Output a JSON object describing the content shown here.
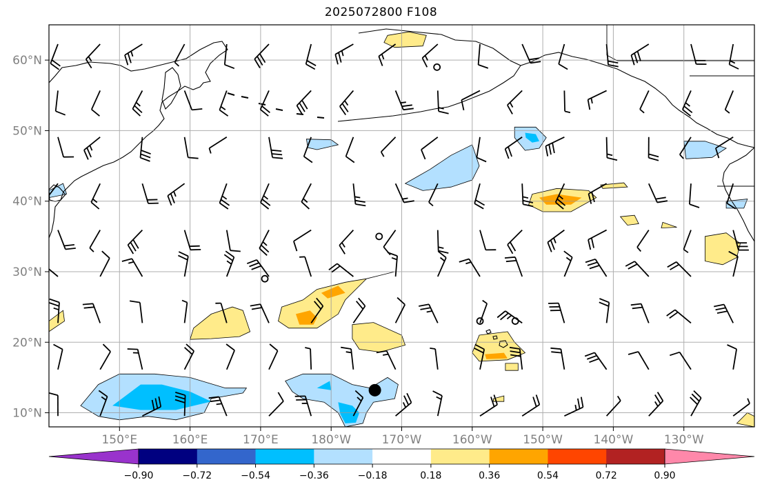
{
  "title": "2025072800 F108",
  "map": {
    "lon_range": [
      140,
      240
    ],
    "lat_range": [
      8,
      65
    ],
    "lat_ticks": [
      {
        "value": 10,
        "label": "10°N"
      },
      {
        "value": 20,
        "label": "20°N"
      },
      {
        "value": 30,
        "label": "30°N"
      },
      {
        "value": 40,
        "label": "40°N"
      },
      {
        "value": 50,
        "label": "50°N"
      },
      {
        "value": 60,
        "label": "60°N"
      }
    ],
    "lon_ticks": [
      {
        "value": 150,
        "label": "150°E"
      },
      {
        "value": 160,
        "label": "160°E"
      },
      {
        "value": 170,
        "label": "170°E"
      },
      {
        "value": 180,
        "label": "180°W"
      },
      {
        "value": 190,
        "label": "170°W"
      },
      {
        "value": 200,
        "label": "160°W"
      },
      {
        "value": 210,
        "label": "150°W"
      },
      {
        "value": 220,
        "label": "140°W"
      },
      {
        "value": 230,
        "label": "130°W"
      }
    ],
    "grid": true,
    "tc_marker": {
      "lon": 186.2,
      "lat": 13.2
    },
    "open_circles": [
      {
        "lon": 195,
        "lat": 59
      },
      {
        "lon": 186.8,
        "lat": 35
      },
      {
        "lon": 170.6,
        "lat": 29
      },
      {
        "lon": 201.1,
        "lat": 23
      },
      {
        "lon": 206.1,
        "lat": 23
      }
    ]
  },
  "colorbar": {
    "colors": [
      "#9933cc",
      "#000080",
      "#3366cc",
      "#00bfff",
      "#b3e0ff",
      "#ffffff",
      "#ffeb8a",
      "#ffa500",
      "#ff4500",
      "#b22222",
      "#ff88aa"
    ],
    "labels": [
      "−0.90",
      "−0.72",
      "−0.54",
      "−0.36",
      "−0.18",
      "0.18",
      "0.36",
      "0.54",
      "0.72",
      "0.90"
    ]
  },
  "anomaly_regions": [
    {
      "level": 1,
      "color": "#b3e0ff",
      "pts": [
        [
          144.5,
          11
        ],
        [
          147,
          14
        ],
        [
          150,
          15.5
        ],
        [
          155,
          15.5
        ],
        [
          160,
          15
        ],
        [
          165,
          13.5
        ],
        [
          168,
          13.5
        ],
        [
          167.5,
          12.8
        ],
        [
          163,
          12
        ],
        [
          162,
          10
        ],
        [
          158,
          9
        ],
        [
          154,
          9.5
        ],
        [
          150,
          9
        ],
        [
          147,
          9.5
        ]
      ]
    },
    {
      "level": 2,
      "color": "#00bfff",
      "pts": [
        [
          149,
          11
        ],
        [
          153,
          14
        ],
        [
          156,
          14
        ],
        [
          160,
          13
        ],
        [
          163,
          11.6
        ],
        [
          158,
          10.4
        ],
        [
          153,
          10.4
        ]
      ]
    },
    {
      "level": 1,
      "color": "#b3e0ff",
      "pts": [
        [
          173.5,
          14.5
        ],
        [
          176,
          15.5
        ],
        [
          180,
          15.5
        ],
        [
          183,
          14
        ],
        [
          185.5,
          13.5
        ],
        [
          188,
          15
        ],
        [
          189.5,
          14
        ],
        [
          189,
          12
        ],
        [
          186,
          11.5
        ],
        [
          185,
          10
        ],
        [
          184.5,
          8.5
        ],
        [
          182,
          8
        ],
        [
          181,
          10
        ],
        [
          179,
          11.5
        ],
        [
          176,
          12
        ],
        [
          174.5,
          13
        ]
      ]
    },
    {
      "level": 2,
      "color": "#00bfff",
      "pts": [
        [
          181,
          11.5
        ],
        [
          183,
          11
        ],
        [
          184,
          10
        ],
        [
          183.5,
          8.6
        ],
        [
          182,
          8.5
        ],
        [
          181.3,
          9.8
        ]
      ]
    },
    {
      "level": 2,
      "color": "#00bfff",
      "pts": [
        [
          178,
          13.5
        ],
        [
          180,
          13.2
        ],
        [
          179.8,
          14.5
        ]
      ]
    },
    {
      "level": 1,
      "color": "#ffeb8a",
      "pts": [
        [
          173,
          25
        ],
        [
          176,
          26
        ],
        [
          178,
          27.5
        ],
        [
          182,
          28.5
        ],
        [
          185,
          29
        ],
        [
          187,
          29.5
        ],
        [
          189,
          30
        ],
        [
          185,
          29
        ],
        [
          182,
          26
        ],
        [
          181,
          24
        ],
        [
          178,
          22
        ],
        [
          174,
          22
        ],
        [
          172.5,
          23
        ]
      ]
    },
    {
      "level": 2,
      "color": "#ffa500",
      "pts": [
        [
          175,
          24
        ],
        [
          177,
          24.5
        ],
        [
          178,
          23.5
        ],
        [
          177.5,
          22.5
        ],
        [
          175.5,
          22.5
        ]
      ]
    },
    {
      "level": 2,
      "color": "#ffa500",
      "pts": [
        [
          178.6,
          27
        ],
        [
          181,
          28
        ],
        [
          182,
          27
        ],
        [
          179.5,
          26.2
        ]
      ]
    },
    {
      "level": 1,
      "color": "#ffeb8a",
      "pts": [
        [
          160.5,
          22
        ],
        [
          163,
          24
        ],
        [
          166,
          25
        ],
        [
          167.5,
          24.5
        ],
        [
          168.5,
          21.5
        ],
        [
          167,
          20.8
        ],
        [
          163,
          20.5
        ],
        [
          160,
          20.4
        ]
      ]
    },
    {
      "level": 1,
      "color": "#ffeb8a",
      "pts": [
        [
          183,
          22.5
        ],
        [
          186,
          22.8
        ],
        [
          190,
          21
        ],
        [
          190.5,
          19.6
        ],
        [
          187,
          18.6
        ],
        [
          184,
          19
        ],
        [
          183,
          20.5
        ]
      ]
    },
    {
      "level": 1,
      "color": "#ffeb8a",
      "pts": [
        [
          201,
          21
        ],
        [
          205,
          21.5
        ],
        [
          206,
          20
        ],
        [
          207.5,
          18.5
        ],
        [
          205,
          17.5
        ],
        [
          201,
          17.3
        ],
        [
          200,
          18.5
        ]
      ]
    },
    {
      "level": 2,
      "color": "#ffa500",
      "pts": [
        [
          201.8,
          18.3
        ],
        [
          204.5,
          18.5
        ],
        [
          205,
          17.7
        ],
        [
          202,
          17.6
        ]
      ]
    },
    {
      "level": 1,
      "color": "#b3e0ff",
      "pts": [
        [
          190.5,
          42.5
        ],
        [
          194,
          44.5
        ],
        [
          197,
          46.5
        ],
        [
          200,
          48
        ],
        [
          201,
          45
        ],
        [
          200,
          43
        ],
        [
          197,
          42
        ],
        [
          193,
          41.5
        ]
      ]
    },
    {
      "level": 1,
      "color": "#b3e0ff",
      "pts": [
        [
          206,
          50.5
        ],
        [
          209,
          50.5
        ],
        [
          210.5,
          49
        ],
        [
          209.5,
          47.5
        ],
        [
          207.5,
          47.2
        ],
        [
          206,
          49
        ]
      ]
    },
    {
      "level": 2,
      "color": "#00bfff",
      "pts": [
        [
          207.5,
          49.7
        ],
        [
          209,
          49.5
        ],
        [
          209.5,
          48.5
        ],
        [
          208.5,
          48.3
        ],
        [
          207.6,
          49
        ]
      ]
    },
    {
      "level": 1,
      "color": "#b3e0ff",
      "pts": [
        [
          176.5,
          48.8
        ],
        [
          180,
          48.7
        ],
        [
          181,
          48
        ],
        [
          178,
          47.3
        ],
        [
          176.7,
          47.6
        ]
      ]
    },
    {
      "level": 1,
      "color": "#b3e0ff",
      "pts": [
        [
          230,
          48.5
        ],
        [
          233,
          48.5
        ],
        [
          236,
          47.5
        ],
        [
          234,
          46.2
        ],
        [
          230.3,
          46
        ]
      ]
    },
    {
      "level": 1,
      "color": "#ffeb8a",
      "pts": [
        [
          208.5,
          41
        ],
        [
          212,
          41.8
        ],
        [
          216.5,
          41.5
        ],
        [
          217.6,
          40.5
        ],
        [
          214,
          38.5
        ],
        [
          210,
          38.5
        ],
        [
          208,
          39.5
        ]
      ]
    },
    {
      "level": 2,
      "color": "#ffa500",
      "pts": [
        [
          209.5,
          40.5
        ],
        [
          212,
          41
        ],
        [
          215.5,
          40.5
        ],
        [
          214,
          39.5
        ],
        [
          210.5,
          39.5
        ]
      ]
    },
    {
      "level": 1,
      "color": "#ffeb8a",
      "pts": [
        [
          233,
          35
        ],
        [
          236,
          35.5
        ],
        [
          238,
          34
        ],
        [
          237.5,
          32
        ],
        [
          235.5,
          31
        ],
        [
          233,
          31.5
        ]
      ]
    },
    {
      "level": 1,
      "color": "#ffeb8a",
      "pts": [
        [
          188,
          63.5
        ],
        [
          191,
          64
        ],
        [
          193.5,
          63.5
        ],
        [
          193,
          62
        ],
        [
          189,
          61.8
        ],
        [
          187.5,
          62.5
        ]
      ]
    },
    {
      "level": 1,
      "color": "#ffeb8a",
      "pts": [
        [
          221,
          37.8
        ],
        [
          223,
          38
        ],
        [
          223.6,
          36.8
        ],
        [
          222,
          36.6
        ]
      ]
    },
    {
      "level": 1,
      "color": "#ffeb8a",
      "pts": [
        [
          218.2,
          42.3
        ],
        [
          221.5,
          42.6
        ],
        [
          222,
          42
        ],
        [
          218.5,
          41.8
        ]
      ]
    },
    {
      "level": 1,
      "color": "#ffeb8a",
      "pts": [
        [
          140,
          23
        ],
        [
          142,
          24.5
        ],
        [
          142.2,
          23
        ],
        [
          140,
          21.5
        ]
      ]
    },
    {
      "level": 1,
      "color": "#ffeb8a",
      "pts": [
        [
          237.5,
          8.5
        ],
        [
          239,
          10
        ],
        [
          240,
          9.5
        ],
        [
          240,
          8
        ]
      ]
    },
    {
      "level": 1,
      "color": "#b3e0ff",
      "pts": [
        [
          140,
          41.5
        ],
        [
          142,
          42.5
        ],
        [
          142.5,
          41
        ],
        [
          140,
          40.5
        ]
      ]
    },
    {
      "level": 1,
      "color": "#b3e0ff",
      "pts": [
        [
          236,
          40
        ],
        [
          239,
          40.3
        ],
        [
          238.5,
          39
        ],
        [
          236,
          39
        ]
      ]
    },
    {
      "level": 1,
      "color": "#ffeb8a",
      "pts": [
        [
          204.7,
          17
        ],
        [
          206.5,
          17
        ],
        [
          206.5,
          16
        ],
        [
          204.7,
          16
        ]
      ]
    },
    {
      "level": 1,
      "color": "#ffeb8a",
      "pts": [
        [
          227,
          37
        ],
        [
          229,
          36.3
        ],
        [
          226.8,
          36.2
        ]
      ]
    },
    {
      "level": 1,
      "color": "#ffeb8a",
      "pts": [
        [
          203,
          12
        ],
        [
          204.5,
          12.4
        ],
        [
          204.5,
          11.6
        ],
        [
          203,
          11.6
        ]
      ]
    }
  ]
}
